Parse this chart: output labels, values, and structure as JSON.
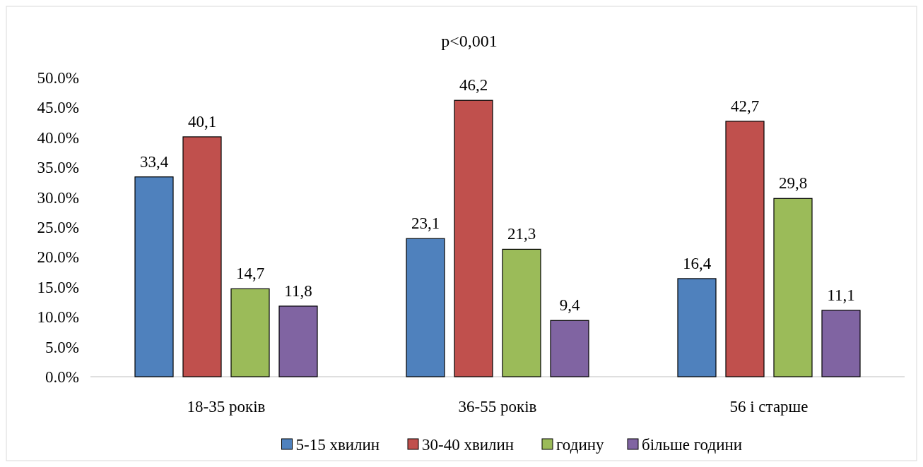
{
  "chart_data": {
    "type": "bar",
    "title": "p<0,001",
    "categories": [
      "18-35 років",
      "36-55 років",
      "56 і старше"
    ],
    "series": [
      {
        "name": "5-15 хвилин",
        "color": "#4f81bd",
        "values": [
          33.4,
          23.1,
          16.4
        ],
        "value_labels": [
          "33,4",
          "23,1",
          "16,4"
        ]
      },
      {
        "name": "30-40 хвилин",
        "color": "#c0504d",
        "values": [
          40.1,
          46.2,
          42.7
        ],
        "value_labels": [
          "40,1",
          "46,2",
          "42,7"
        ]
      },
      {
        "name": "годину",
        "color": "#9bbb59",
        "values": [
          14.7,
          21.3,
          29.8
        ],
        "value_labels": [
          "14,7",
          "21,3",
          "29,8"
        ]
      },
      {
        "name": "більше години",
        "color": "#8064a2",
        "values": [
          11.8,
          9.4,
          11.1
        ],
        "value_labels": [
          "11,8",
          "9,4",
          "11,1"
        ]
      }
    ],
    "ylim": [
      0,
      50
    ],
    "yticks": [
      {
        "value": 0,
        "label": "0.0%"
      },
      {
        "value": 5,
        "label": "5.0%"
      },
      {
        "value": 10,
        "label": "10.0%"
      },
      {
        "value": 15,
        "label": "15.0%"
      },
      {
        "value": 20,
        "label": "20.0%"
      },
      {
        "value": 25,
        "label": "25.0%"
      },
      {
        "value": 30,
        "label": "30.0%"
      },
      {
        "value": 35,
        "label": "35.0%"
      },
      {
        "value": 40,
        "label": "40.0%"
      },
      {
        "value": 45,
        "label": "45.0%"
      },
      {
        "value": 50,
        "label": "50.0%"
      }
    ],
    "legend": "bottom"
  }
}
